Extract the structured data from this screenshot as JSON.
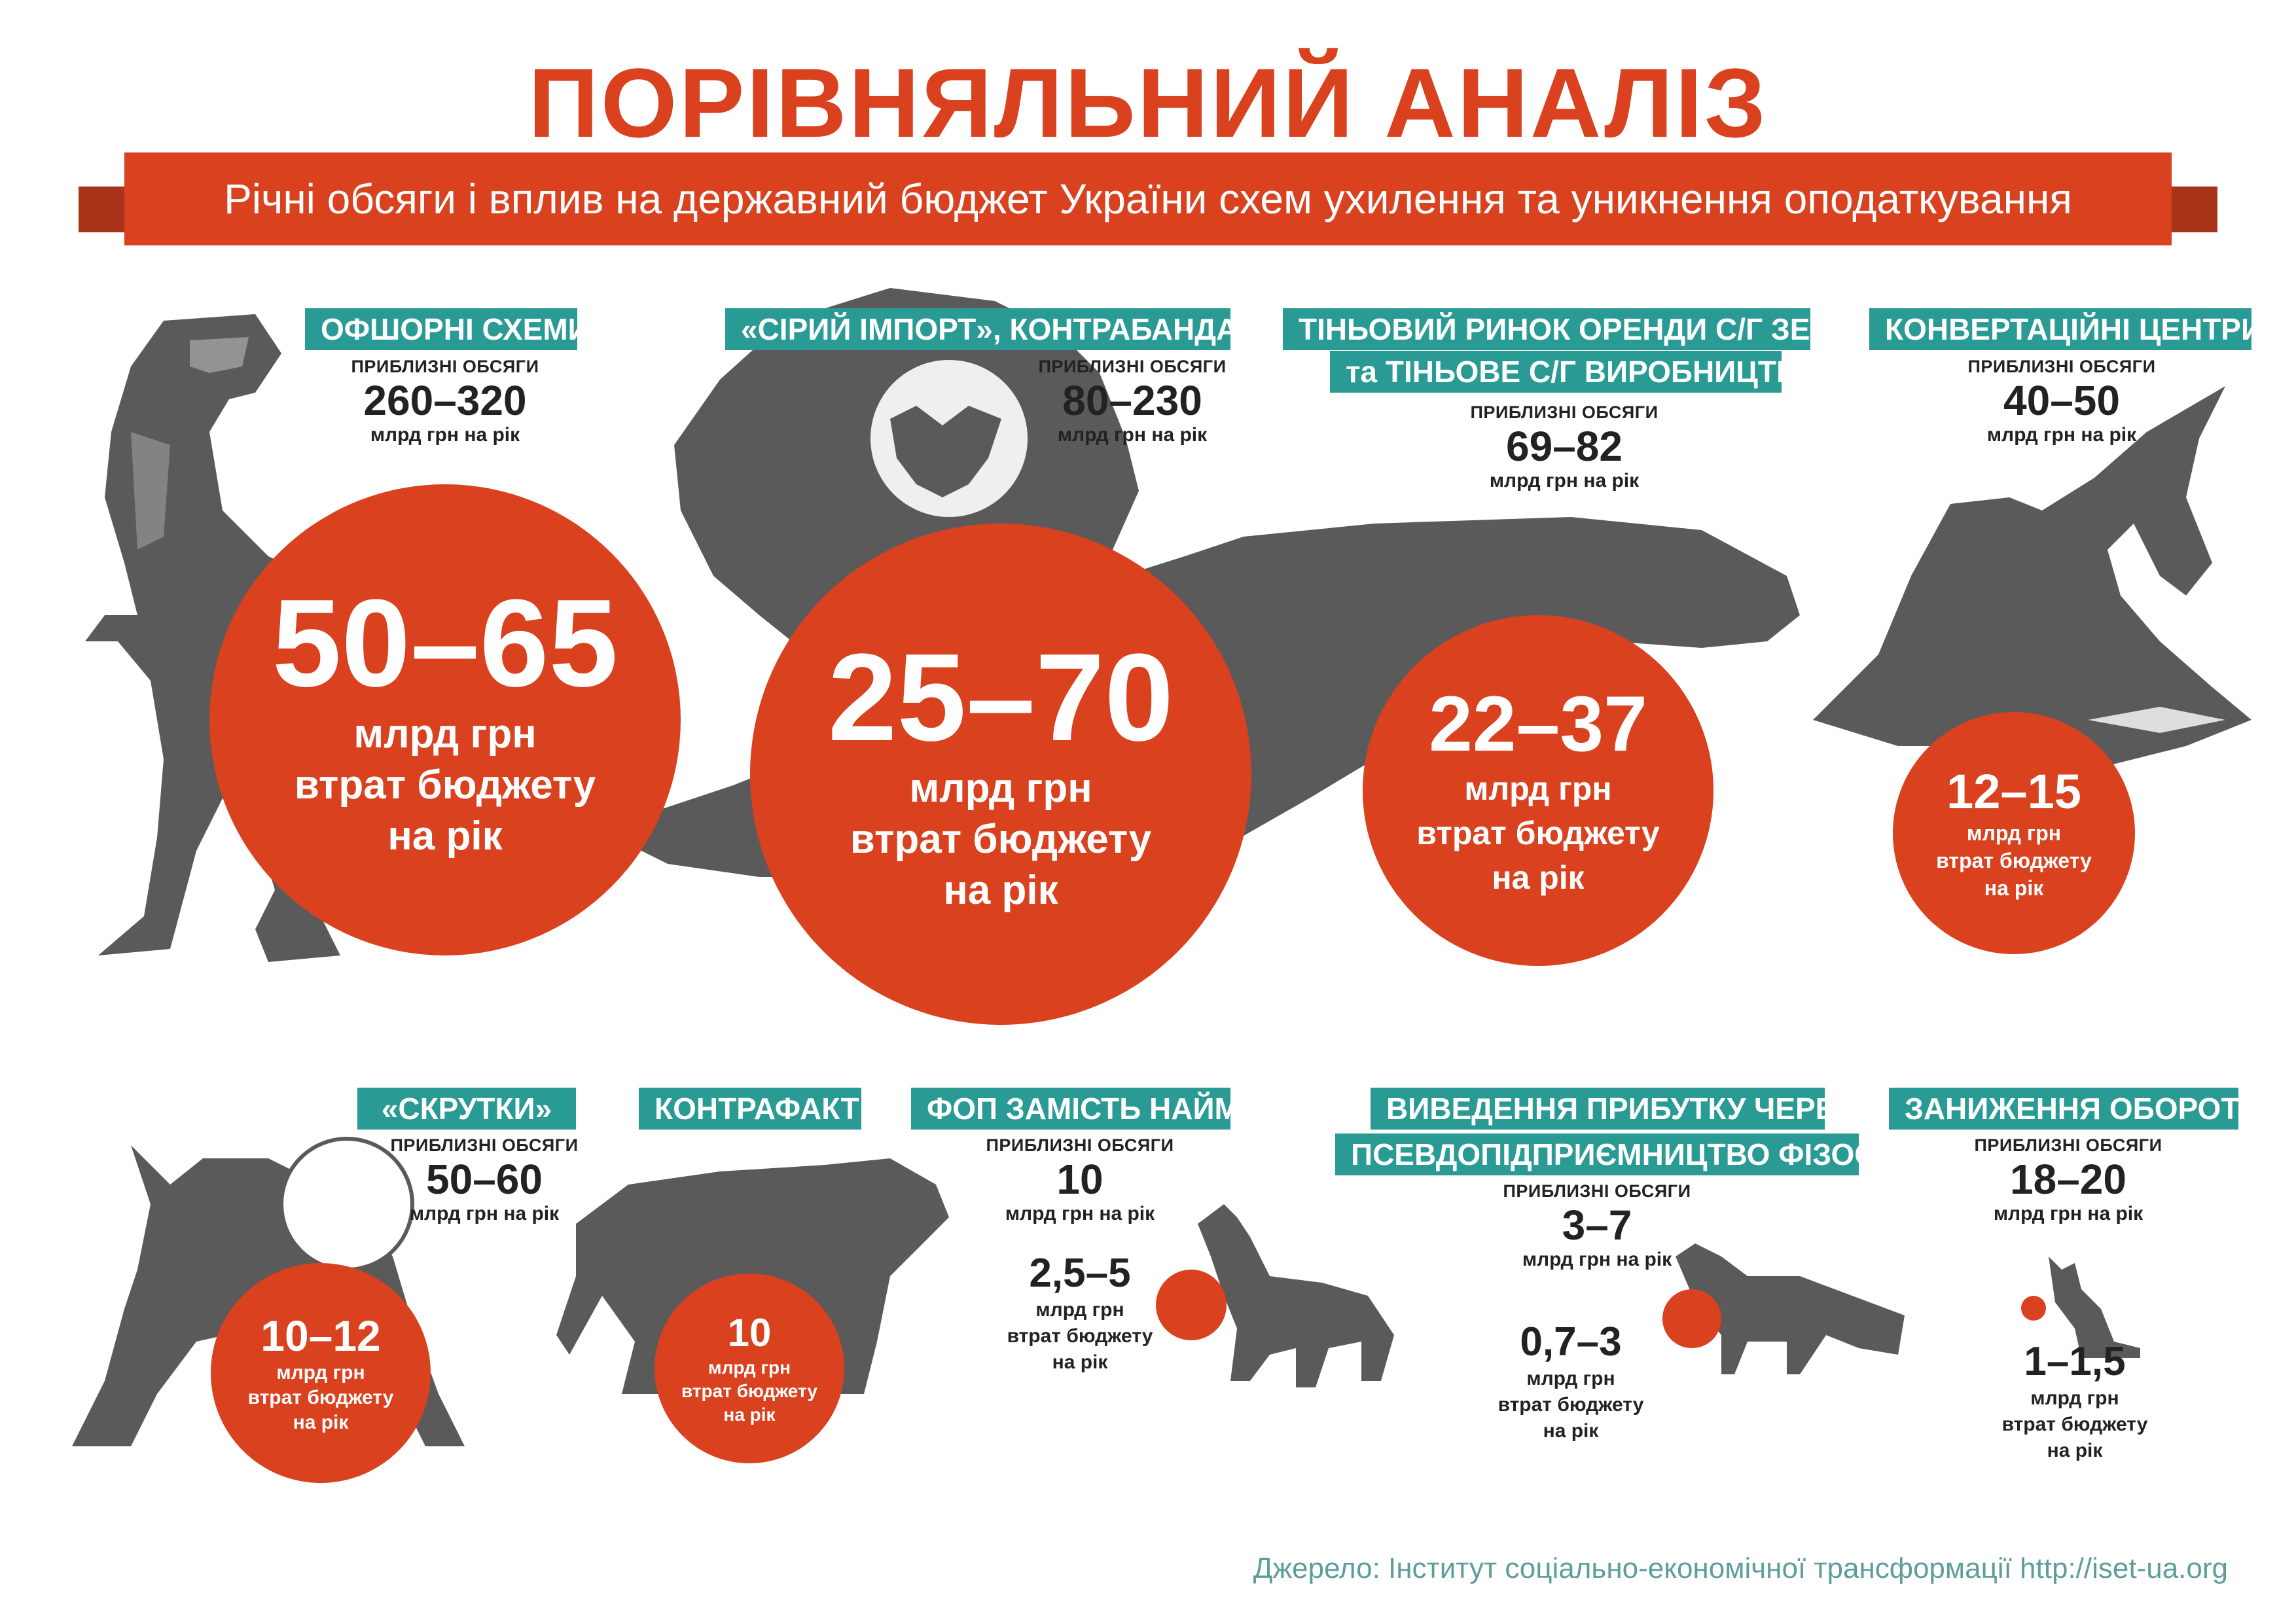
{
  "title": "ПОРІВНЯЛЬНИЙ АНАЛІЗ",
  "subtitle": "Річні обсяги і вплив на державний бюджет України схем ухилення та уникнення оподаткування",
  "common": {
    "volume_label": "ПРИБЛИЗНІ ОБСЯГИ",
    "volume_unit": "млрд грн на рік",
    "loss_unit": "млрд грн",
    "loss_text_1": "втрат бюджету",
    "loss_text_2": "на рік"
  },
  "schemes": [
    {
      "name": "ОФШОРНІ СХЕМИ",
      "volume": "260–320",
      "loss": "50–65",
      "animal": "dinosaur-icon"
    },
    {
      "name": "«СІРИЙ ІМПОРТ», КОНТРАБАНДА",
      "volume": "80–230",
      "loss": "25–70",
      "animal": "bear-icon"
    },
    {
      "name_line1": "ТІНЬОВИЙ РИНОК ОРЕНДИ С/Г ЗЕМЛІ",
      "name_line2": "та ТІНЬОВЕ С/Г ВИРОБНИЦТВО",
      "volume": "69–82",
      "loss": "22–37",
      "animal": "crocodile-icon"
    },
    {
      "name": "КОНВЕРТАЦІЙНІ ЦЕНТРИ",
      "volume": "40–50",
      "loss": "12–15",
      "animal": "shark-icon"
    },
    {
      "name": "«СКРУТКИ»",
      "volume": "50–60",
      "loss": "10–12",
      "animal": "lion-icon"
    },
    {
      "name": "КОНТРАФАКТ",
      "loss": "10",
      "animal": "panther-icon"
    },
    {
      "name": "ФОП ЗАМІСТЬ НАЙМУ",
      "volume": "10",
      "loss": "2,5–5",
      "animal": "dog-icon"
    },
    {
      "name_line1": "ВИВЕДЕННЯ ПРИБУТКУ ЧЕРЕЗ",
      "name_line2": "ПСЕВДОПІДПРИЄМНИЦТВО ФІЗОСІБ",
      "volume": "3–7",
      "loss": "0,7–3",
      "animal": "fox-icon"
    },
    {
      "name": "ЗАНИЖЕННЯ ОБОРОТІВ",
      "volume": "18–20",
      "loss": "1–1,5",
      "animal": "cat-icon"
    }
  ],
  "source": "Джерело: Інститут соціально-економічної трансформації http://iset-ua.org",
  "colors": {
    "accent": "#d9411f",
    "teal": "#2a9a94",
    "silhouette": "#5a5a5a"
  }
}
